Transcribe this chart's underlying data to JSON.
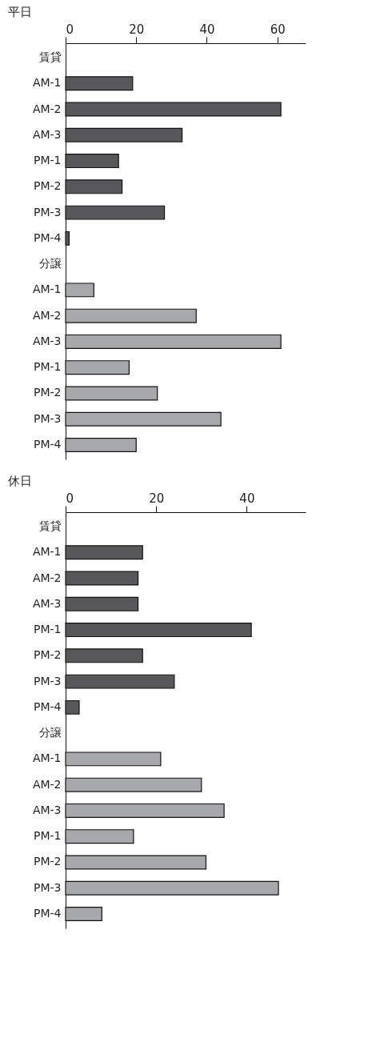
{
  "chart_data": [
    {
      "type": "bar",
      "orientation": "horizontal",
      "title": "平日",
      "categories": [
        "賃貸",
        "AM-1",
        "AM-2",
        "AM-3",
        "PM-1",
        "PM-2",
        "PM-3",
        "PM-4",
        "分譲",
        "AM-1",
        "AM-2",
        "AM-3",
        "PM-1",
        "PM-2",
        "PM-3",
        "PM-4"
      ],
      "values": [
        null,
        19,
        61,
        33,
        15,
        16,
        28,
        1,
        null,
        8,
        37,
        61,
        18,
        26,
        44,
        20
      ],
      "colors": [
        "#58585a",
        "#58585a",
        "#58585a",
        "#58585a",
        "#58585a",
        "#58585a",
        "#58585a",
        "#58585a",
        "#a7a8ab",
        "#a7a8ab",
        "#a7a8ab",
        "#a7a8ab",
        "#a7a8ab",
        "#a7a8ab",
        "#a7a8ab",
        "#a7a8ab"
      ],
      "xlim": [
        0,
        68
      ],
      "xticks": [
        0,
        20,
        40,
        60
      ],
      "grid": false
    },
    {
      "type": "bar",
      "orientation": "horizontal",
      "title": "休日",
      "categories": [
        "賃貸",
        "AM-1",
        "AM-2",
        "AM-3",
        "PM-1",
        "PM-2",
        "PM-3",
        "PM-4",
        "分譲",
        "AM-1",
        "AM-2",
        "AM-3",
        "PM-1",
        "PM-2",
        "PM-3",
        "PM-4"
      ],
      "values": [
        null,
        17,
        16,
        16,
        41,
        17,
        24,
        3,
        null,
        21,
        30,
        35,
        15,
        31,
        47,
        8
      ],
      "colors": [
        "#58585a",
        "#58585a",
        "#58585a",
        "#58585a",
        "#58585a",
        "#58585a",
        "#58585a",
        "#58585a",
        "#a7a8ab",
        "#a7a8ab",
        "#a7a8ab",
        "#a7a8ab",
        "#a7a8ab",
        "#a7a8ab",
        "#a7a8ab",
        "#a7a8ab"
      ],
      "xlim": [
        0,
        53
      ],
      "xticks": [
        0,
        20,
        40
      ],
      "grid": false
    }
  ]
}
